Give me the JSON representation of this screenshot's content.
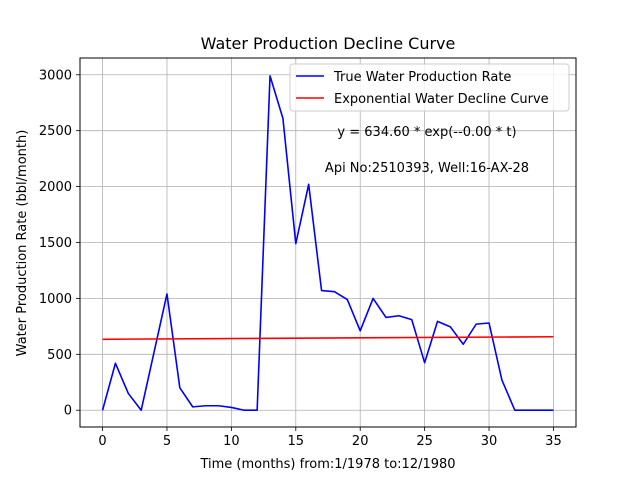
{
  "chart_data": {
    "type": "line",
    "title": "Water Production Decline Curve",
    "xlabel": "Time (months) from:1/1978 to:12/1980",
    "ylabel": "Water Production Rate (bbl/month)",
    "xlim": [
      -1.75,
      36.75
    ],
    "ylim": [
      -150,
      3150
    ],
    "xticks": [
      0,
      5,
      10,
      15,
      20,
      25,
      30,
      35
    ],
    "yticks": [
      0,
      500,
      1000,
      1500,
      2000,
      2500,
      3000
    ],
    "grid": true,
    "legend_position": "top-right",
    "series": [
      {
        "name": "True Water Production Rate",
        "color": "#0000ff",
        "x": [
          0,
          1,
          2,
          3,
          4,
          5,
          6,
          7,
          8,
          9,
          10,
          11,
          12,
          13,
          14,
          15,
          16,
          17,
          18,
          19,
          20,
          21,
          22,
          23,
          24,
          25,
          26,
          27,
          28,
          29,
          30,
          31,
          32,
          33,
          34,
          35
        ],
        "values": [
          0,
          420,
          150,
          0,
          520,
          1040,
          200,
          30,
          40,
          40,
          25,
          0,
          0,
          2990,
          2610,
          1490,
          2020,
          1070,
          1060,
          990,
          710,
          1000,
          830,
          845,
          810,
          425,
          795,
          745,
          590,
          770,
          780,
          270,
          0,
          0,
          0,
          0
        ]
      },
      {
        "name": "Exponential Water Decline Curve",
        "color": "#ff0000",
        "x": [
          0,
          35
        ],
        "values": [
          634.6,
          657.0
        ]
      }
    ],
    "annotations": [
      "y = 634.60 * exp(--0.00 * t)",
      "Api No:2510393, Well:16-AX-28"
    ]
  }
}
